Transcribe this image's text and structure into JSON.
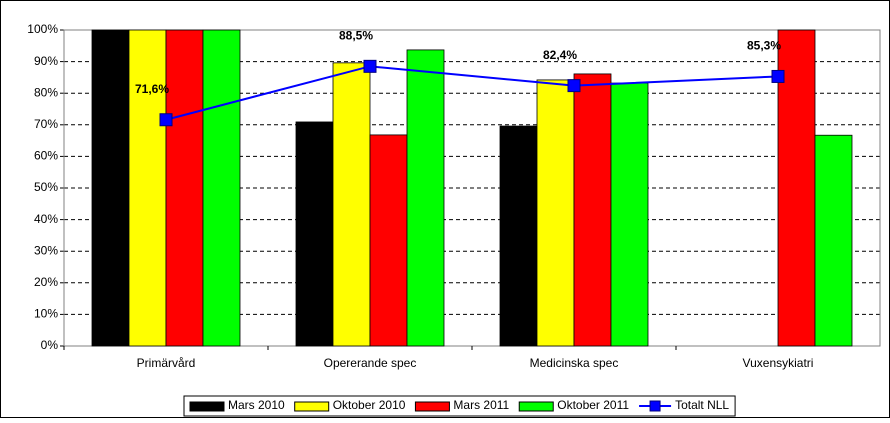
{
  "chart_data": {
    "type": "bar",
    "categories": [
      "Primärvård",
      "Opererande spec",
      "Medicinska spec",
      "Vuxensykiatri"
    ],
    "series": [
      {
        "name": "Mars 2010",
        "color": "#000000",
        "values": [
          100,
          70.9,
          69.6,
          null
        ]
      },
      {
        "name": "Oktober 2010",
        "color": "#ffff00",
        "values": [
          100,
          89.6,
          84.2,
          null
        ]
      },
      {
        "name": "Mars 2011",
        "color": "#ff0000",
        "values": [
          100,
          66.8,
          86.1,
          100
        ]
      },
      {
        "name": "Oktober 2011",
        "color": "#00ff00",
        "values": [
          100,
          93.7,
          83.2,
          66.7
        ]
      },
      {
        "name": "Totalt NLL",
        "color": "#0000ff",
        "type": "line",
        "values": [
          71.6,
          88.5,
          82.4,
          85.3
        ],
        "value_labels": [
          "71,6%",
          "88,5%",
          "82,4%",
          "85,3%"
        ]
      }
    ],
    "ylim": [
      0,
      100
    ],
    "yticks": [
      {
        "value": 0,
        "label": "0%"
      },
      {
        "value": 10,
        "label": "10%"
      },
      {
        "value": 20,
        "label": "20%"
      },
      {
        "value": 30,
        "label": "30%"
      },
      {
        "value": 40,
        "label": "40%"
      },
      {
        "value": 50,
        "label": "50%"
      },
      {
        "value": 60,
        "label": "60%"
      },
      {
        "value": 70,
        "label": "70%"
      },
      {
        "value": 80,
        "label": "80%"
      },
      {
        "value": 90,
        "label": "90%"
      },
      {
        "value": 100,
        "label": "100%"
      }
    ],
    "grid": true,
    "legend": "bottom"
  }
}
